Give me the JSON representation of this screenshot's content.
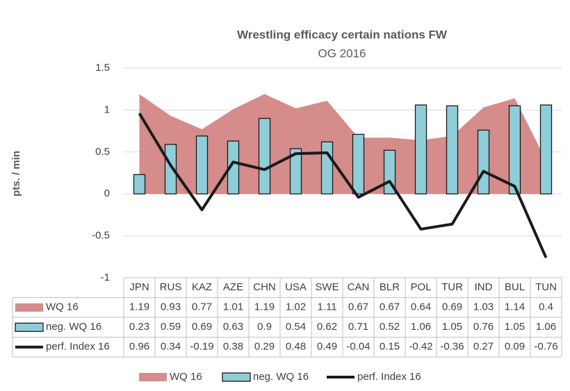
{
  "chart_data": {
    "type": "combo",
    "title": "Wrestling efficacy certain nations  FW",
    "subtitle": "OG 2016",
    "y_label": "pts. / min",
    "categories": [
      "JPN",
      "RUS",
      "KAZ",
      "AZE",
      "CHN",
      "USA",
      "SWE",
      "CAN",
      "BLR",
      "POL",
      "TUR",
      "IND",
      "BUL",
      "TUN"
    ],
    "series": [
      {
        "name": "WQ 16",
        "type": "area",
        "color": "#d58c8a",
        "values": [
          1.19,
          0.93,
          0.77,
          1.01,
          1.19,
          1.02,
          1.11,
          0.67,
          0.67,
          0.64,
          0.69,
          1.03,
          1.14,
          0.4
        ]
      },
      {
        "name": "neg. WQ 16",
        "type": "bar",
        "color": "#8fcdd9",
        "values": [
          0.23,
          0.59,
          0.69,
          0.63,
          0.9,
          0.54,
          0.62,
          0.71,
          0.52,
          1.06,
          1.05,
          0.76,
          1.05,
          1.06
        ]
      },
      {
        "name": "perf. Index 16",
        "type": "line",
        "color": "#1a1a1a",
        "values": [
          0.96,
          0.34,
          -0.19,
          0.38,
          0.29,
          0.48,
          0.49,
          -0.04,
          0.15,
          -0.42,
          -0.36,
          0.27,
          0.09,
          -0.76
        ]
      }
    ],
    "ylim": [
      -1,
      1.5
    ],
    "yticks": [
      -1,
      -0.5,
      0,
      0.5,
      1,
      1.5
    ],
    "grid": true
  }
}
